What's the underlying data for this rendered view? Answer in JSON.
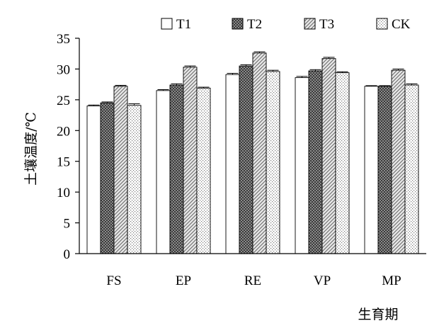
{
  "chart_data": {
    "type": "bar",
    "categories": [
      "FS",
      "EP",
      "RE",
      "VP",
      "MP"
    ],
    "series": [
      {
        "name": "T1",
        "values": [
          24.0,
          26.5,
          29.1,
          28.6,
          27.2
        ],
        "errors": [
          0.15,
          0.15,
          0.2,
          0.2,
          0.1
        ]
      },
      {
        "name": "T2",
        "values": [
          24.5,
          27.4,
          30.5,
          29.7,
          27.2
        ],
        "errors": [
          0.15,
          0.2,
          0.2,
          0.2,
          0.1
        ]
      },
      {
        "name": "T3",
        "values": [
          27.2,
          30.3,
          32.6,
          31.7,
          29.8
        ],
        "errors": [
          0.15,
          0.2,
          0.2,
          0.2,
          0.2
        ]
      },
      {
        "name": "CK",
        "values": [
          24.1,
          26.9,
          29.6,
          29.4,
          27.4
        ],
        "errors": [
          0.25,
          0.15,
          0.2,
          0.15,
          0.2
        ]
      }
    ],
    "xlabel": "生育期",
    "ylabel": "土壤温度/℃",
    "ylim": [
      0,
      35
    ],
    "yticks": [
      "0",
      "5",
      "10",
      "15",
      "20",
      "25",
      "30",
      "35"
    ],
    "grid": false,
    "legend": "top",
    "colors": {
      "T1": "#ffffff",
      "T2": "#6e6e6e",
      "T3": "#c8c8c8",
      "CK": "#e4e4e4"
    }
  }
}
